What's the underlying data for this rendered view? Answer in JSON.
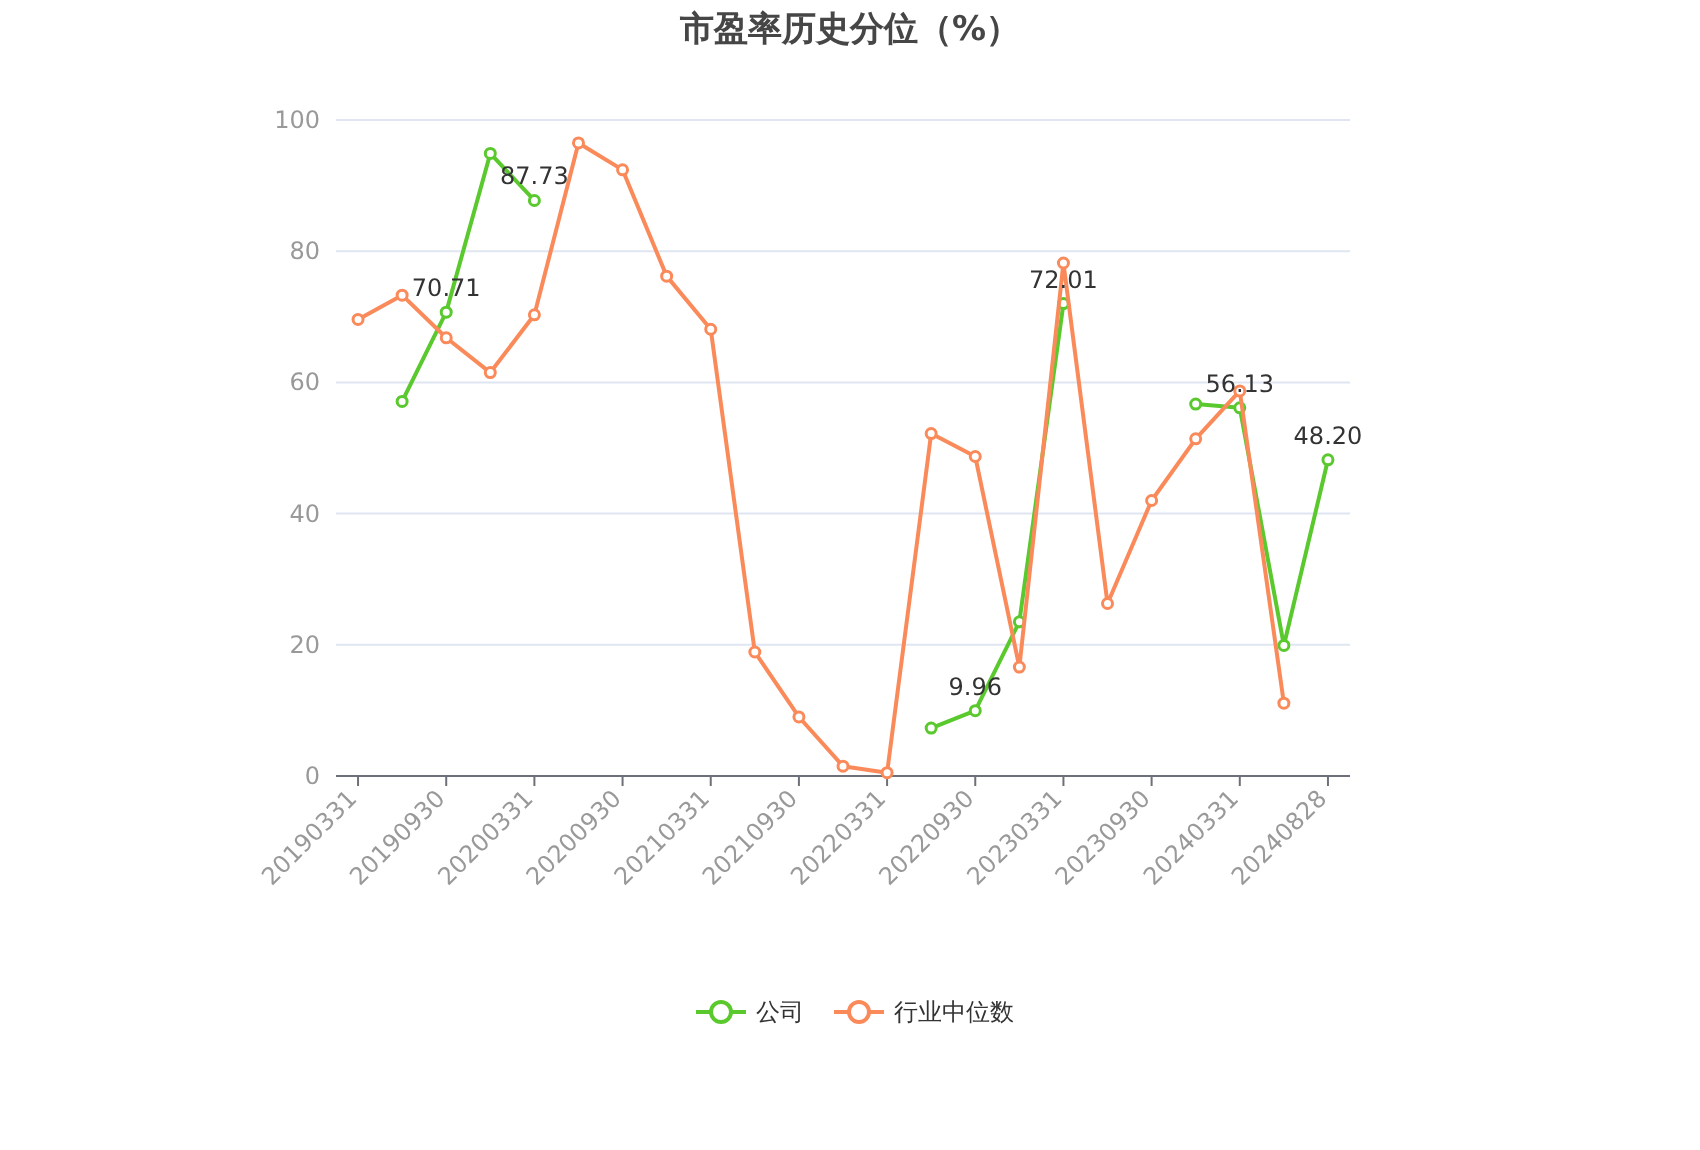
{
  "chart_data": {
    "type": "line",
    "title": "市盈率历史分位（%）",
    "categories": [
      "20190331",
      null,
      "20190930",
      null,
      "20200331",
      null,
      "20200930",
      null,
      "20210331",
      null,
      "20210930",
      null,
      "20220331",
      null,
      "20220930",
      null,
      "20230331",
      null,
      "20230930",
      null,
      "20240331",
      null,
      "20240828"
    ],
    "series": [
      {
        "name": "公司",
        "color": "#5ac92e",
        "values": [
          null,
          57.1,
          70.71,
          94.9,
          87.73,
          null,
          null,
          null,
          null,
          null,
          null,
          null,
          null,
          7.3,
          9.96,
          23.5,
          72.01,
          null,
          null,
          56.7,
          56.13,
          19.9,
          48.2
        ],
        "value_labels": [
          null,
          null,
          "70.71",
          null,
          "87.73",
          null,
          null,
          null,
          null,
          null,
          null,
          null,
          null,
          null,
          "9.96",
          null,
          "72.01",
          null,
          null,
          null,
          "56.13",
          null,
          "48.20"
        ]
      },
      {
        "name": "行业中位数",
        "color": "#fa8a5a",
        "values": [
          69.6,
          73.3,
          66.8,
          61.5,
          70.3,
          96.5,
          92.4,
          76.2,
          68.1,
          18.9,
          9.0,
          1.5,
          0.5,
          52.2,
          48.7,
          16.6,
          78.2,
          26.3,
          42.0,
          51.4,
          58.7,
          11.1,
          null
        ]
      }
    ],
    "ylim": [
      0,
      100
    ],
    "yticks": [
      0,
      20,
      40,
      60,
      80,
      100
    ],
    "grid": "y",
    "legend": "bottom",
    "marker": "circle",
    "line_style": "solid"
  }
}
